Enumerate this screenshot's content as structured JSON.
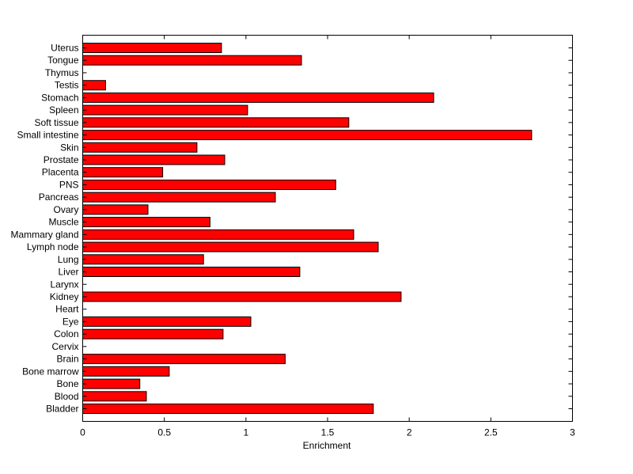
{
  "chart_data": {
    "type": "bar",
    "orientation": "horizontal",
    "categories": [
      "Uterus",
      "Tongue",
      "Thymus",
      "Testis",
      "Stomach",
      "Spleen",
      "Soft tissue",
      "Small intestine",
      "Skin",
      "Prostate",
      "Placenta",
      "PNS",
      "Pancreas",
      "Ovary",
      "Muscle",
      "Mammary gland",
      "Lymph node",
      "Lung",
      "Liver",
      "Larynx",
      "Kidney",
      "Heart",
      "Eye",
      "Colon",
      "Cervix",
      "Brain",
      "Bone marrow",
      "Bone",
      "Blood",
      "Bladder"
    ],
    "values": [
      0.85,
      1.34,
      0,
      0.14,
      2.15,
      1.01,
      1.63,
      2.75,
      0.7,
      0.87,
      0.49,
      1.55,
      1.18,
      0.4,
      0.78,
      1.66,
      1.81,
      0.74,
      1.33,
      0,
      1.95,
      0,
      1.03,
      0.86,
      0,
      1.24,
      0.53,
      0.35,
      0.39,
      1.78
    ],
    "xlabel": "Enrichment",
    "ylabel": "",
    "xlim": [
      0,
      3
    ],
    "xticks": [
      "0",
      "0.5",
      "1",
      "1.5",
      "2",
      "2.5",
      "3"
    ],
    "grid": false,
    "bar_color": "#ff0000"
  }
}
